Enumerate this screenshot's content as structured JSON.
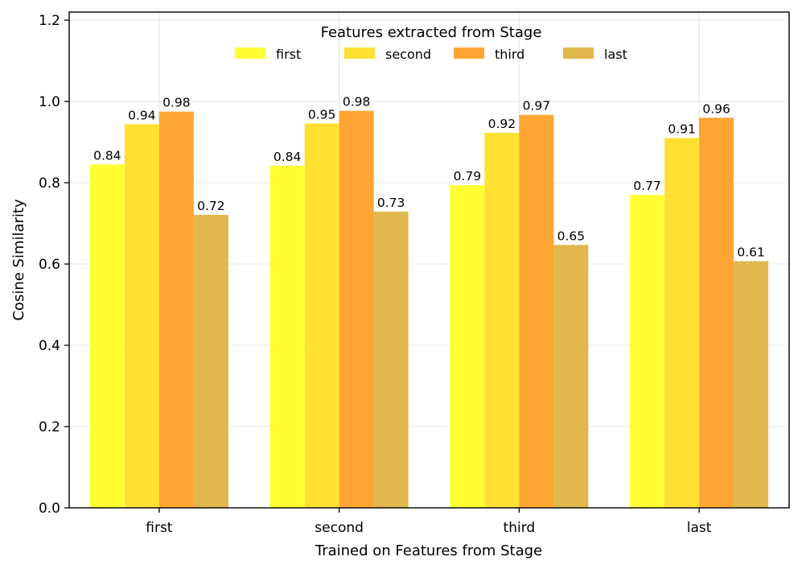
{
  "chart_data": {
    "type": "bar",
    "title": "",
    "xlabel": "Trained on Features from Stage",
    "ylabel": "Cosine Similarity",
    "ylim": [
      0,
      1.22
    ],
    "yticks": [
      0.0,
      0.2,
      0.4,
      0.6,
      0.8,
      1.0,
      1.2
    ],
    "ytick_labels": [
      "0.0",
      "0.2",
      "0.4",
      "0.6",
      "0.8",
      "1.0",
      "1.2"
    ],
    "grid": true,
    "categories": [
      "first",
      "second",
      "third",
      "last"
    ],
    "legend": {
      "title": "Features extracted from Stage",
      "placement": "top-center",
      "ncol": 4
    },
    "series": [
      {
        "name": "first",
        "color": "#FFFF33",
        "values": [
          0.845,
          0.842,
          0.794,
          0.77
        ],
        "labels": [
          "0.84",
          "0.84",
          "0.79",
          "0.77"
        ]
      },
      {
        "name": "second",
        "color": "#FFE033",
        "values": [
          0.944,
          0.946,
          0.923,
          0.91
        ],
        "labels": [
          "0.94",
          "0.95",
          "0.92",
          "0.91"
        ]
      },
      {
        "name": "third",
        "color": "#FFA533",
        "values": [
          0.975,
          0.977,
          0.967,
          0.96
        ],
        "labels": [
          "0.98",
          "0.98",
          "0.97",
          "0.96"
        ]
      },
      {
        "name": "last",
        "color": "#E1B84E",
        "values": [
          0.721,
          0.729,
          0.647,
          0.607
        ],
        "labels": [
          "0.72",
          "0.73",
          "0.65",
          "0.61"
        ]
      }
    ]
  }
}
